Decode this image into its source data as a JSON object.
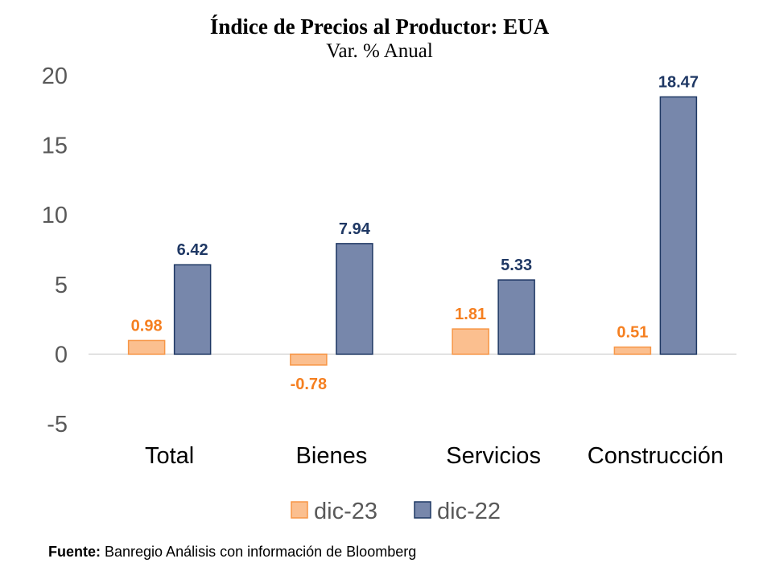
{
  "chart_data": {
    "type": "bar",
    "title": "Índice de Precios al Productor: EUA",
    "subtitle": "Var. % Anual",
    "categories": [
      "Total",
      "Bienes",
      "Servicios",
      "Construcción"
    ],
    "series": [
      {
        "name": "dic-23",
        "values": [
          0.98,
          -0.78,
          1.81,
          0.51
        ],
        "labels": [
          "0.98",
          "-0.78",
          "1.81",
          "0.51"
        ],
        "color": "#FBBF8F",
        "stroke": "#F79646",
        "label_color": "#F57F20"
      },
      {
        "name": "dic-22",
        "values": [
          6.42,
          7.94,
          5.33,
          18.47
        ],
        "labels": [
          "6.42",
          "7.94",
          "5.33",
          "18.47"
        ],
        "color": "#7787AB",
        "stroke": "#1F3864",
        "label_color": "#1F3864"
      }
    ],
    "yticks": [
      "20",
      "15",
      "10",
      "5",
      "0",
      "-5"
    ],
    "ytick_values": [
      20,
      15,
      10,
      5,
      0,
      -5
    ],
    "ylim": [
      -5,
      20
    ],
    "grid": false,
    "legend_position": "bottom"
  },
  "source": {
    "label": "Fuente:",
    "text": " Banregio Análisis con información de Bloomberg"
  }
}
